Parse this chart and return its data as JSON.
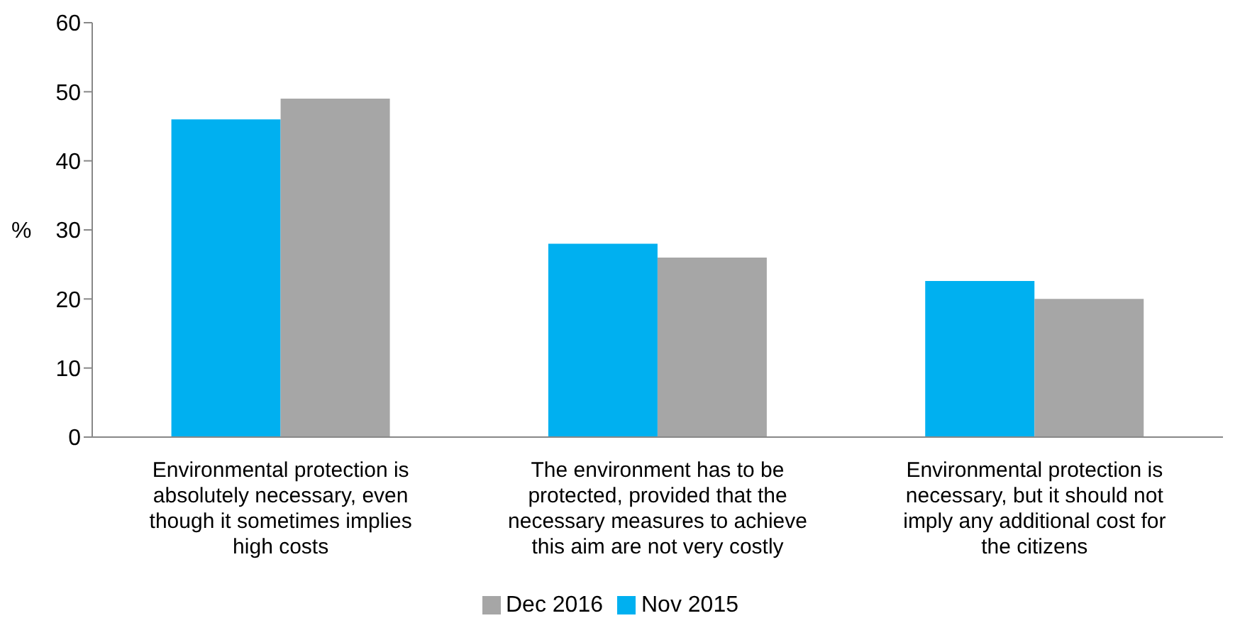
{
  "chart_data": {
    "type": "bar",
    "ylabel": "%",
    "categories": [
      "Environmental protection is absolutely necessary, even though it sometimes implies high costs",
      "The environment has to be protected, provided that the necessary measures to achieve this aim are not very costly",
      "Environmental protection is necessary, but it should not imply any additional cost for the citizens"
    ],
    "series": [
      {
        "name": "Nov 2015",
        "color": "#00b0f0",
        "values": [
          46,
          28,
          22.6
        ]
      },
      {
        "name": "Dec 2016",
        "color": "#a6a6a6",
        "values": [
          49,
          26,
          20
        ]
      }
    ],
    "ylim": [
      0,
      60
    ],
    "yticks": [
      0,
      10,
      20,
      30,
      40,
      50,
      60
    ],
    "grid": false,
    "legend": "bottom"
  }
}
